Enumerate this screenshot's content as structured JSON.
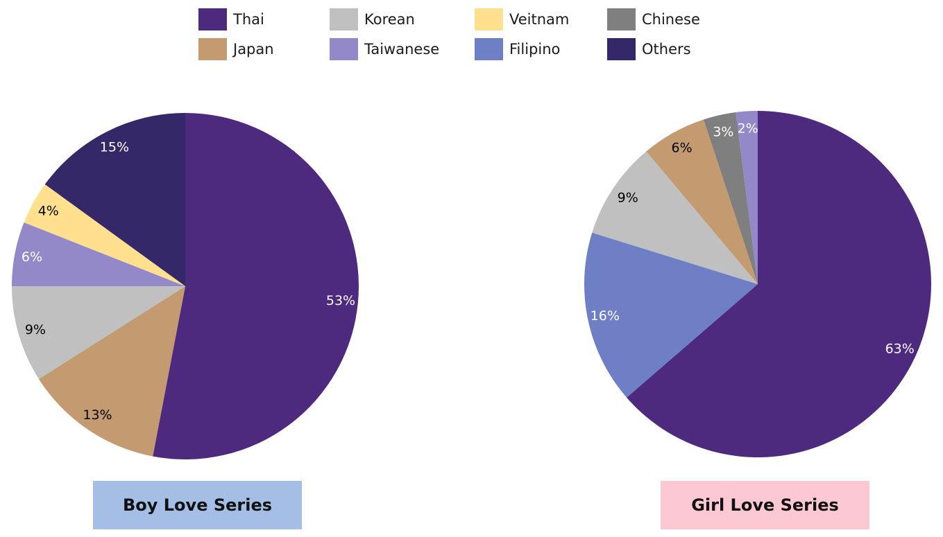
{
  "legend": [
    {
      "label": "Thai",
      "color": "#4e2a7f"
    },
    {
      "label": "Korean",
      "color": "#c0c0c0"
    },
    {
      "label": "Veitnam",
      "color": "#ffe08e"
    },
    {
      "label": "Chinese",
      "color": "#7f7f7f"
    },
    {
      "label": "Japan",
      "color": "#c49a70"
    },
    {
      "label": "Taiwanese",
      "color": "#9389c8"
    },
    {
      "label": "Filipino",
      "color": "#6f7fc6"
    },
    {
      "label": "Others",
      "color": "#352868"
    }
  ],
  "chart_data": [
    {
      "type": "pie",
      "title": "Boy Love Series",
      "caption_color": "#a4bee5",
      "slices": [
        {
          "label": "Thai",
          "value": 53,
          "display": "53%",
          "color": "#4e2a7f",
          "text_color": "#ffffff"
        },
        {
          "label": "Japan",
          "value": 13,
          "display": "13%",
          "color": "#c49a70",
          "text_color": "#000000"
        },
        {
          "label": "Korean",
          "value": 9,
          "display": "9%",
          "color": "#c0c0c0",
          "text_color": "#000000"
        },
        {
          "label": "Taiwanese",
          "value": 6,
          "display": "6%",
          "color": "#9389c8",
          "text_color": "#ffffff"
        },
        {
          "label": "Veitnam",
          "value": 4,
          "display": "4%",
          "color": "#ffe08e",
          "text_color": "#000000"
        },
        {
          "label": "Others",
          "value": 15,
          "display": "15%",
          "color": "#352868",
          "text_color": "#ffffff"
        }
      ]
    },
    {
      "type": "pie",
      "title": "Girl Love Series",
      "caption_color": "#fcc8d3",
      "slices": [
        {
          "label": "Thai",
          "value": 63,
          "display": "63%",
          "color": "#4e2a7f",
          "text_color": "#ffffff"
        },
        {
          "label": "Filipino",
          "value": 16,
          "display": "16%",
          "color": "#6f7fc6",
          "text_color": "#ffffff"
        },
        {
          "label": "Korean",
          "value": 9,
          "display": "9%",
          "color": "#c0c0c0",
          "text_color": "#000000"
        },
        {
          "label": "Japan",
          "value": 6,
          "display": "6%",
          "color": "#c49a70",
          "text_color": "#000000"
        },
        {
          "label": "Chinese",
          "value": 3,
          "display": "3%",
          "color": "#7f7f7f",
          "text_color": "#ffffff"
        },
        {
          "label": "Taiwanese",
          "value": 2,
          "display": "2%",
          "color": "#9389c8",
          "text_color": "#ffffff"
        }
      ]
    }
  ]
}
